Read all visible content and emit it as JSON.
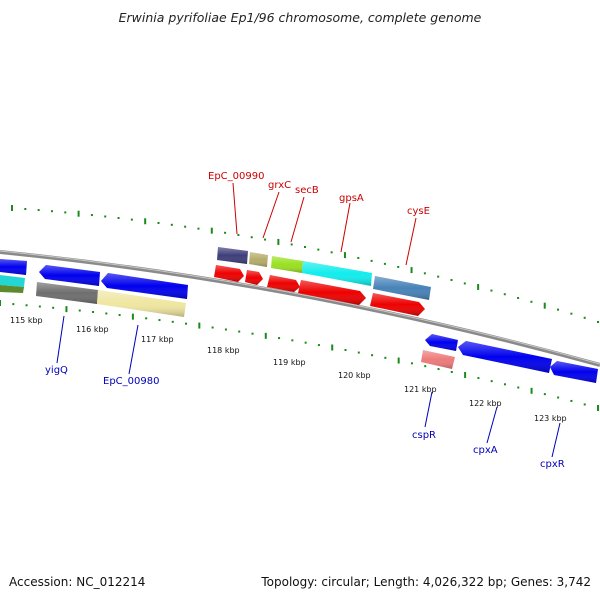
{
  "title": "Erwinia pyrifoliae Ep1/96 chromosome, complete genome",
  "footer": {
    "accession": "Accession: NC_012214",
    "summary": "Topology: circular; Length: 4,026,322 bp; Genes: 3,742"
  },
  "colors": {
    "backbone": "#8a8a8a",
    "tick": "#1a8a1a",
    "forward_label": "#cc0000",
    "reverse_label": "#0000bb"
  },
  "scale_labels": [
    "115 kbp",
    "116 kbp",
    "117 kbp",
    "118 kbp",
    "119 kbp",
    "120 kbp",
    "121 kbp",
    "122 kbp",
    "123 kbp"
  ],
  "forward_labels": [
    "EpC_00990",
    "grxC",
    "secB",
    "gpsA",
    "cysE"
  ],
  "reverse_labels": [
    "yigQ",
    "EpC_00980",
    "cspR",
    "cpxA",
    "cpxR"
  ]
}
